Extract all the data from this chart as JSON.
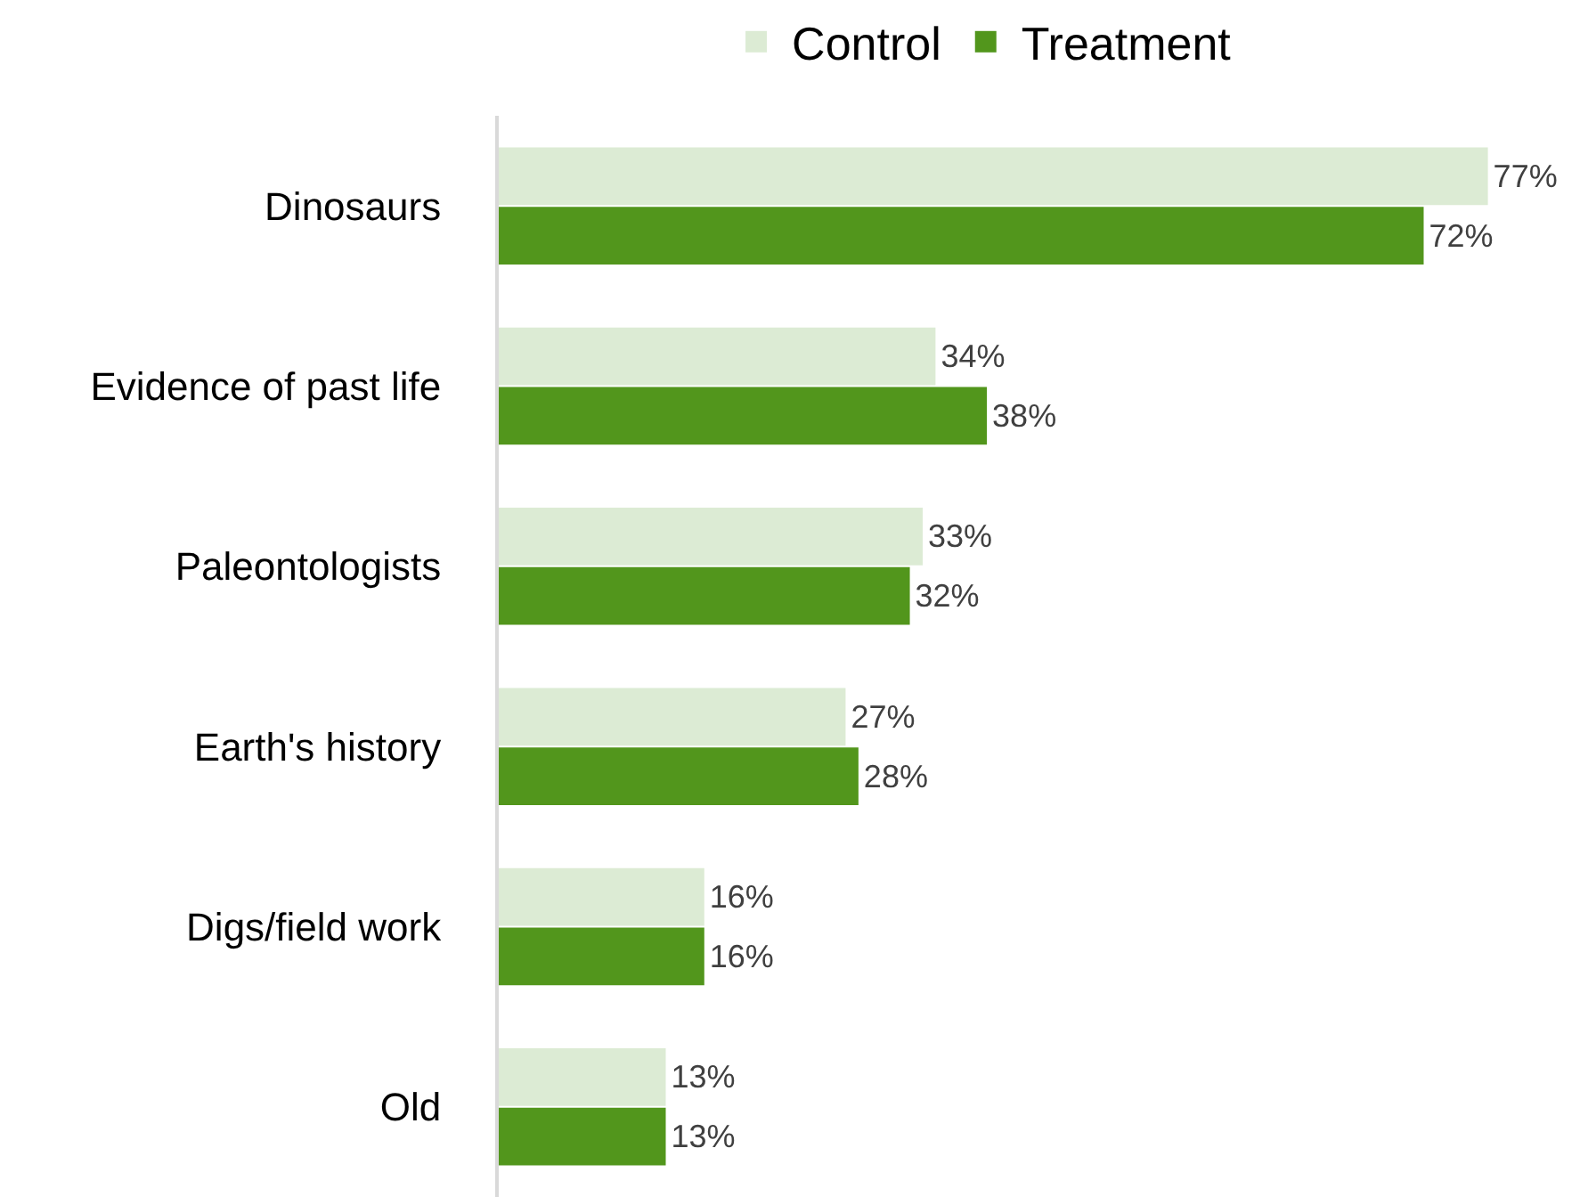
{
  "chart_data": {
    "type": "bar",
    "orientation": "horizontal",
    "legend": "top",
    "tick_labels": "y",
    "xlim": [
      0,
      85
    ],
    "categories": [
      "Dinosaurs",
      "Evidence of past life",
      "Paleontologists",
      "Earth's history",
      "Digs/field work",
      "Old"
    ],
    "series": [
      {
        "name": "Control",
        "color": "#dcebd4",
        "values": [
          77,
          34,
          33,
          27,
          16,
          13
        ],
        "value_labels": [
          "77%",
          "34%",
          "33%",
          "27%",
          "16%",
          "13%"
        ]
      },
      {
        "name": "Treatment",
        "color": "#52961c",
        "values": [
          72,
          38,
          32,
          28,
          16,
          13
        ],
        "value_labels": [
          "72%",
          "38%",
          "32%",
          "28%",
          "16%",
          "13%"
        ]
      }
    ]
  }
}
